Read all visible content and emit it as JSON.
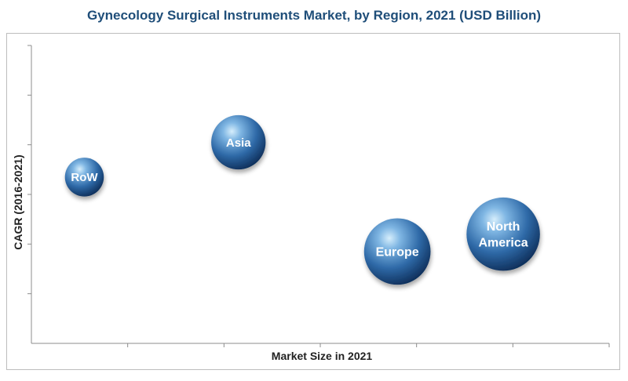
{
  "chart_data": {
    "type": "scatter",
    "title": "Gynecology Surgical Instruments Market, by Region, 2021 (USD Billion)",
    "xlabel": "Market Size in 2021",
    "ylabel": "CAGR (2016-2021)",
    "xlim": [
      0,
      6
    ],
    "ylim": [
      0,
      6
    ],
    "x_ticks": 6,
    "y_ticks": 6,
    "grid": false,
    "series": [
      {
        "points": [
          {
            "label": "RoW",
            "x": 0.55,
            "y": 3.35,
            "size": 0.45
          },
          {
            "label": "Asia",
            "x": 2.15,
            "y": 4.05,
            "size": 0.63
          },
          {
            "label": "Europe",
            "x": 3.8,
            "y": 1.85,
            "size": 0.77
          },
          {
            "label": "North America",
            "x": 4.9,
            "y": 2.2,
            "size": 0.85
          }
        ]
      }
    ],
    "colors": {
      "bubble_light": "#bfe0f5",
      "bubble_mid": "#3f7fbf",
      "bubble_dark": "#0f3260",
      "title": "#1f4e79"
    }
  }
}
